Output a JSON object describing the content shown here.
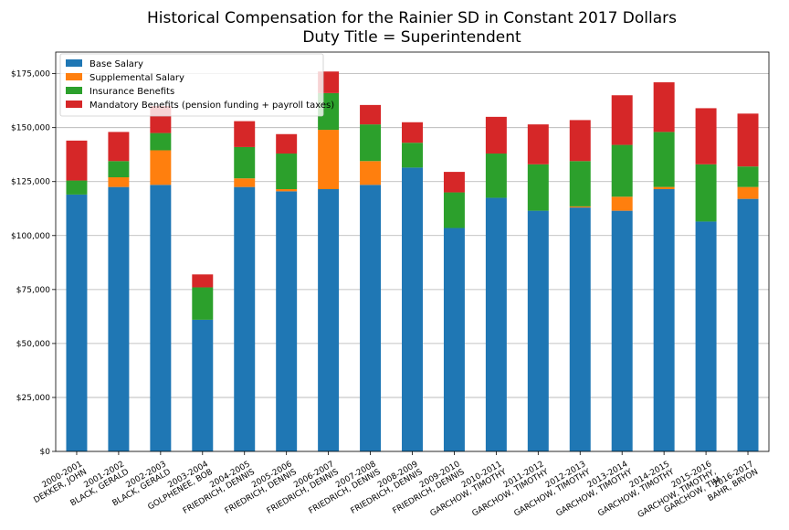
{
  "chart_data": {
    "type": "bar",
    "stacked": true,
    "title": "Historical Compensation for the Rainier SD in Constant 2017 Dollars",
    "subtitle": "Duty Title = Superintendent",
    "xlabel": "",
    "ylabel": "",
    "ylim": [
      0,
      185000
    ],
    "yticks": [
      0,
      25000,
      50000,
      75000,
      100000,
      125000,
      150000,
      175000
    ],
    "ytick_labels": [
      "$0",
      "$25,000",
      "$50,000",
      "$75,000",
      "$100,000",
      "$125,000",
      "$150,000",
      "$175,000"
    ],
    "grid": "horizontal",
    "legend_position": "top-left",
    "categories": [
      "2000-2001\nDEKKER, JOHN",
      "2001-2002\nBLACK, GERALD",
      "2002-2003\nBLACK, GERALD",
      "2003-2004\nGOLPHENEE, BOB",
      "2004-2005\nFRIEDRICH, DENNIS",
      "2005-2006\nFRIEDRICH, DENNIS",
      "2006-2007\nFRIEDRICH, DENNIS",
      "2007-2008\nFRIEDRICH, DENNIS",
      "2008-2009\nFRIEDRICH, DENNIS",
      "2009-2010\nFRIEDRICH, DENNIS",
      "2010-2011\nGARCHOW, TIMOTHY",
      "2011-2012\nGARCHOW, TIMOTHY",
      "2012-2013\nGARCHOW, TIMOTHY",
      "2013-2014\nGARCHOW, TIMOTHY",
      "2014-2015\nGARCHOW, TIMOTHY",
      "2015-2016\nGARCHOW, TIMOTHY,\nGARCHOW, TIM",
      "2016-2017\nBAHR, BRYON"
    ],
    "series": [
      {
        "name": "Base Salary",
        "color": "#1f77b4",
        "values": [
          119000,
          122500,
          123500,
          61000,
          122500,
          120500,
          121500,
          123500,
          131500,
          103500,
          117500,
          111500,
          113000,
          111500,
          121500,
          106500,
          117000
        ]
      },
      {
        "name": "Supplemental Salary",
        "color": "#ff7f0e",
        "values": [
          0,
          4500,
          16000,
          0,
          4000,
          1000,
          27500,
          11000,
          0,
          0,
          0,
          0,
          500,
          6500,
          1000,
          0,
          5500
        ]
      },
      {
        "name": "Insurance Benefits",
        "color": "#2ca02c",
        "values": [
          6500,
          7500,
          8000,
          15000,
          14500,
          16500,
          17000,
          17000,
          11500,
          16500,
          20500,
          21500,
          21000,
          24000,
          25500,
          26500,
          9500
        ]
      },
      {
        "name": "Mandatory Benefits (pension funding + payroll taxes)",
        "color": "#d62728",
        "values": [
          18500,
          13500,
          12500,
          6000,
          12000,
          9000,
          10000,
          9000,
          9500,
          9500,
          17000,
          18500,
          19000,
          23000,
          23000,
          26000,
          24500
        ]
      }
    ]
  }
}
